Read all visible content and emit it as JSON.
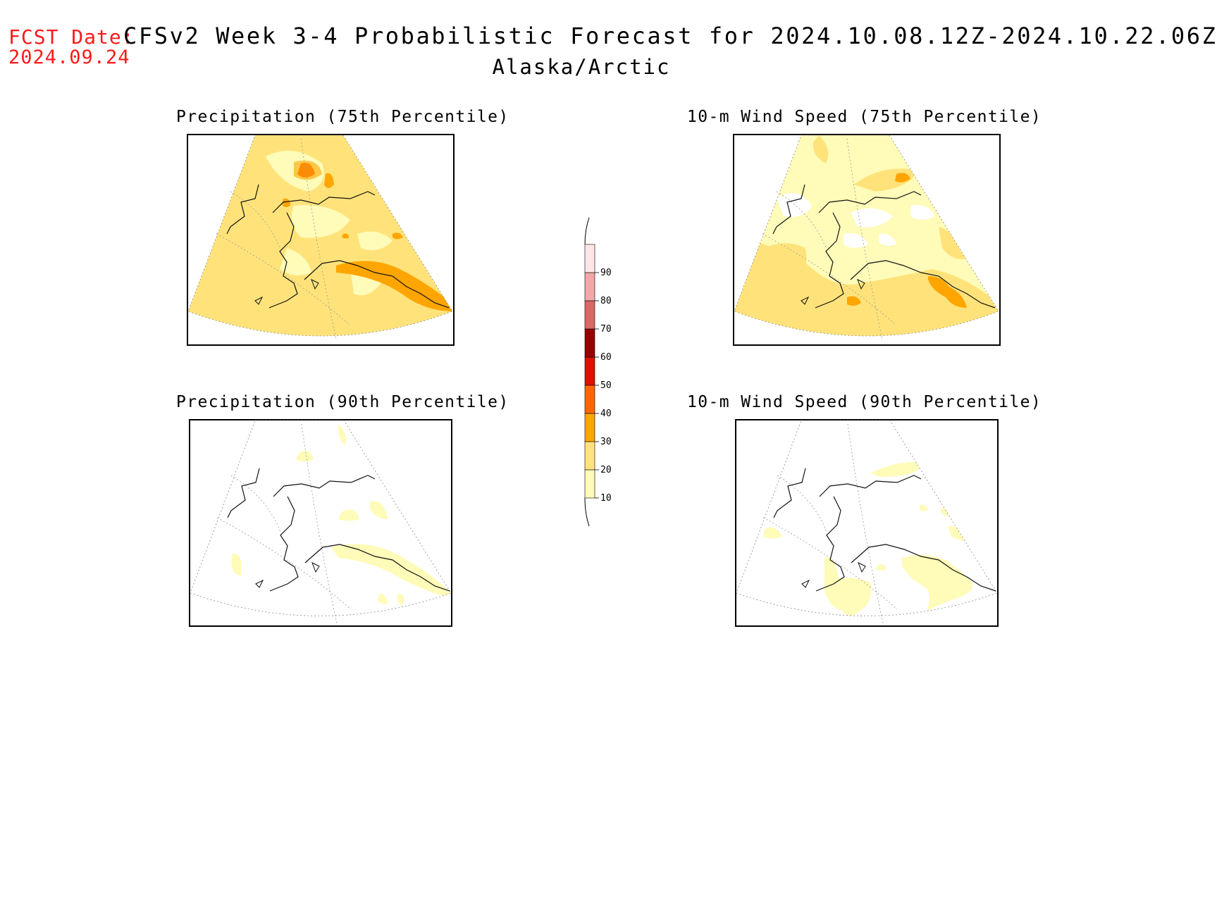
{
  "header": {
    "fcst_label": "FCST Date:",
    "fcst_date": "2024.09.24",
    "title": "CFSv2 Week 3-4 Probabilistic Forecast for 2024.10.08.12Z-2024.10.22.06Z",
    "region": "Alaska/Arctic"
  },
  "panels": [
    {
      "id": "precip75",
      "title": "Precipitation (75th Percentile)"
    },
    {
      "id": "wind75",
      "title": "10-m Wind Speed (75th Percentile)"
    },
    {
      "id": "precip90",
      "title": "Precipitation (90th Percentile)"
    },
    {
      "id": "wind90",
      "title": "10-m Wind Speed (90th Percentile)"
    }
  ],
  "colorbar": {
    "levels": [
      "10",
      "20",
      "30",
      "40",
      "50",
      "60",
      "70",
      "80",
      "90"
    ],
    "colors": [
      "#fffbb8",
      "#ffe37a",
      "#ffa500",
      "#ff6600",
      "#dd1100",
      "#990000",
      "#dd6666",
      "#f0a8a8",
      "#ffe6e6"
    ]
  },
  "colors": {
    "level_10": "#fffbb8",
    "level_20": "#ffe37a",
    "level_30": "#ffa500",
    "level_40": "#ff6600",
    "header_red": "#ff1a1a"
  }
}
